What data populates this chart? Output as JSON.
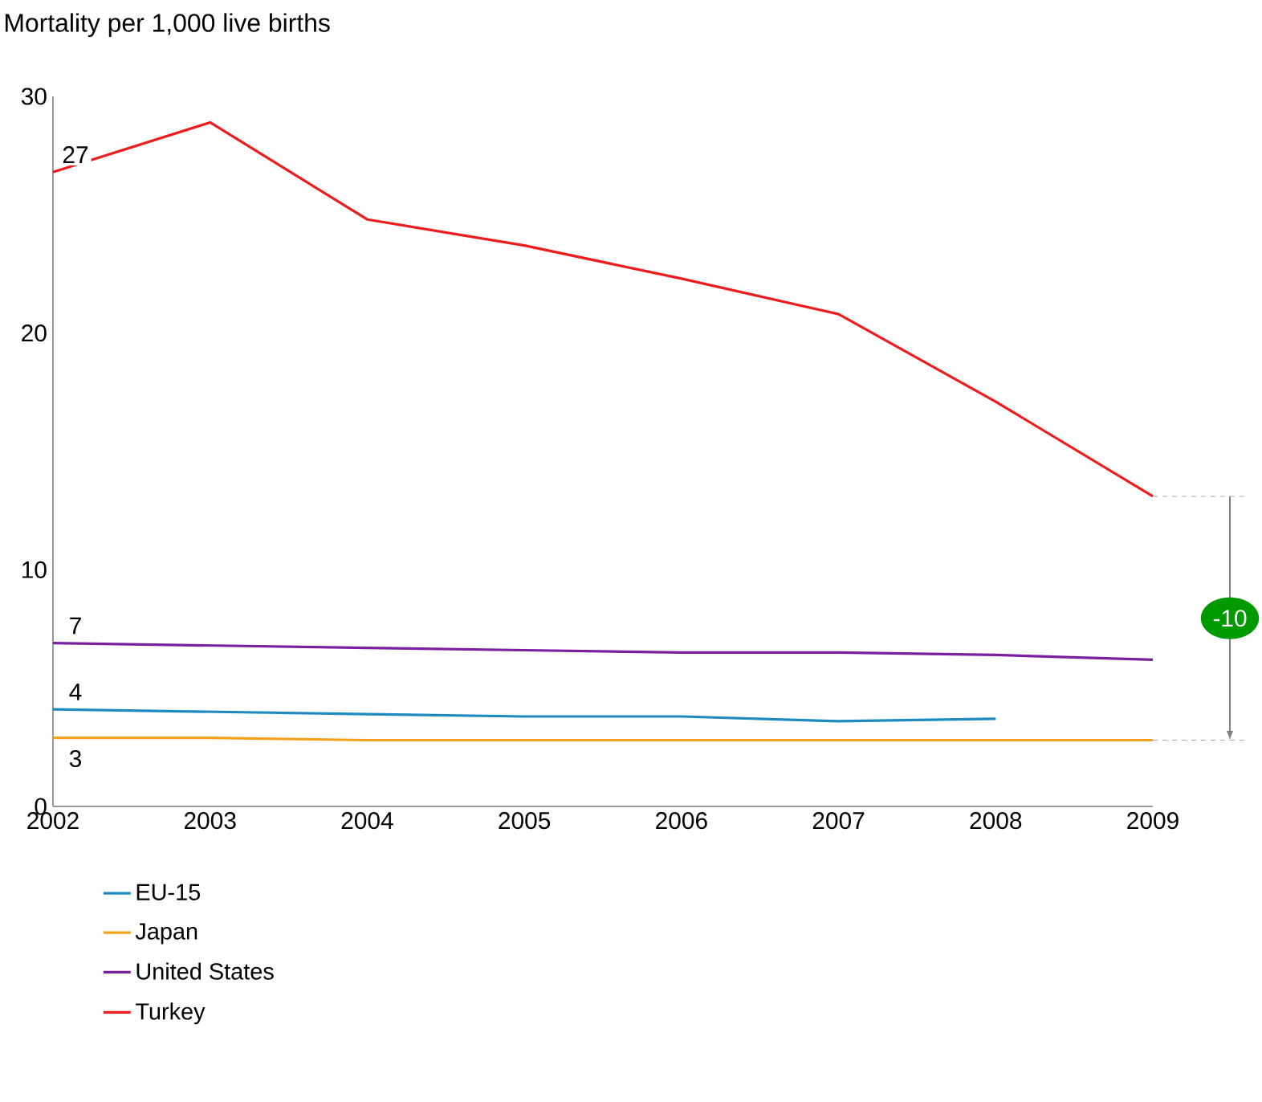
{
  "chart_data": {
    "type": "line",
    "ylabel": "Mortality per 1,000 live births",
    "categories": [
      "2002",
      "2003",
      "2004",
      "2005",
      "2006",
      "2007",
      "2008",
      "2009"
    ],
    "series": [
      {
        "name": "EU-15",
        "color": "#1f8ac0",
        "values": [
          4.1,
          4.0,
          3.9,
          3.8,
          3.8,
          3.6,
          3.7,
          null
        ]
      },
      {
        "name": "Japan",
        "color": "#f5a01a",
        "values": [
          2.9,
          2.9,
          2.8,
          2.8,
          2.8,
          2.8,
          2.8,
          2.8
        ]
      },
      {
        "name": "United States",
        "color": "#7a1fa2",
        "values": [
          6.9,
          6.8,
          6.7,
          6.6,
          6.5,
          6.5,
          6.4,
          6.2
        ]
      },
      {
        "name": "Turkey",
        "color": "#ee1c1c",
        "values": [
          26.8,
          28.9,
          24.8,
          23.7,
          22.3,
          20.8,
          17.1,
          13.1
        ]
      }
    ],
    "ylim": [
      0,
      30
    ],
    "yticks": [
      0,
      10,
      20,
      30
    ],
    "annotations": [
      {
        "text": "27",
        "x": "2002",
        "y": 26.8
      },
      {
        "text": "7",
        "x": "2002",
        "y": 6.9
      },
      {
        "text": "4",
        "x": "2002",
        "y": 4.1
      },
      {
        "text": "3",
        "x": "2002",
        "y": 2.9
      },
      "-10"
    ],
    "grid": false,
    "legend": "bottom",
    "marker": "none",
    "line_style": "solid"
  }
}
